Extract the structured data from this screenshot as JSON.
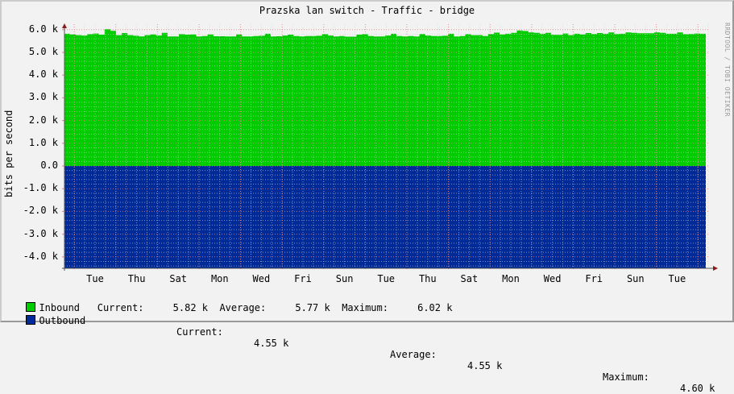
{
  "chart_data": {
    "type": "area",
    "title": "Prazska lan switch - Traffic - bridge",
    "xlabel": "",
    "ylabel": "bits per second",
    "watermark": "RRDTOOL / TOBI OETIKER",
    "ylim": [
      -4550,
      6100
    ],
    "yticks": [
      "6.0 k",
      "5.0 k",
      "4.0 k",
      "3.0 k",
      "2.0 k",
      "1.0 k",
      "0.0",
      "-1.0 k",
      "-2.0 k",
      "-3.0 k",
      "-4.0 k"
    ],
    "ytick_values": [
      6000,
      5000,
      4000,
      3000,
      2000,
      1000,
      0,
      -1000,
      -2000,
      -3000,
      -4000
    ],
    "categories": [
      "Tue",
      "Thu",
      "Sat",
      "Mon",
      "Wed",
      "Fri",
      "Sun",
      "Tue",
      "Thu",
      "Sat",
      "Mon",
      "Wed",
      "Fri",
      "Sun",
      "Tue"
    ],
    "grid": true,
    "legend_position": "bottom",
    "series": [
      {
        "name": "Inbound",
        "color": "#00cc00",
        "current": "5.82 k",
        "average": "5.77 k",
        "maximum": "6.02 k",
        "values": [
          5820,
          5790,
          5760,
          5740,
          5800,
          5830,
          5780,
          6020,
          5950,
          5760,
          5850,
          5760,
          5730,
          5700,
          5760,
          5790,
          5740,
          5860,
          5700,
          5700,
          5800,
          5780,
          5790,
          5700,
          5720,
          5790,
          5710,
          5710,
          5700,
          5700,
          5790,
          5700,
          5700,
          5720,
          5730,
          5820,
          5700,
          5710,
          5740,
          5780,
          5720,
          5700,
          5720,
          5720,
          5730,
          5800,
          5740,
          5700,
          5720,
          5690,
          5690,
          5780,
          5800,
          5720,
          5700,
          5700,
          5740,
          5820,
          5720,
          5700,
          5720,
          5700,
          5810,
          5740,
          5720,
          5720,
          5730,
          5820,
          5700,
          5720,
          5800,
          5760,
          5760,
          5720,
          5810,
          5870,
          5790,
          5820,
          5860,
          5960,
          5940,
          5880,
          5860,
          5820,
          5860,
          5770,
          5770,
          5830,
          5760,
          5820,
          5790,
          5850,
          5810,
          5850,
          5820,
          5880,
          5810,
          5820,
          5880,
          5860,
          5840,
          5840,
          5840,
          5880,
          5860,
          5820,
          5820,
          5880,
          5800,
          5810,
          5830,
          5820
        ]
      },
      {
        "name": "Outbound",
        "color": "#002a97",
        "current": "4.55 k",
        "average": "4.55 k",
        "maximum": "4.60 k",
        "values": [
          -4550,
          -4550,
          -4550,
          -4560,
          -4550,
          -4550
        ]
      }
    ]
  },
  "legend": {
    "inbound": {
      "label": "Inbound",
      "current_label": "Current:",
      "current": "5.82 k",
      "average_label": "Average:",
      "average": "5.77 k",
      "maximum_label": "Maximum:",
      "maximum": "6.02 k"
    },
    "outbound": {
      "label": "Outbound",
      "current_label": "Current:",
      "current": "4.55 k",
      "average_label": "Average:",
      "average": "4.55 k",
      "maximum_label": "Maximum:",
      "maximum": "4.60 k"
    }
  }
}
